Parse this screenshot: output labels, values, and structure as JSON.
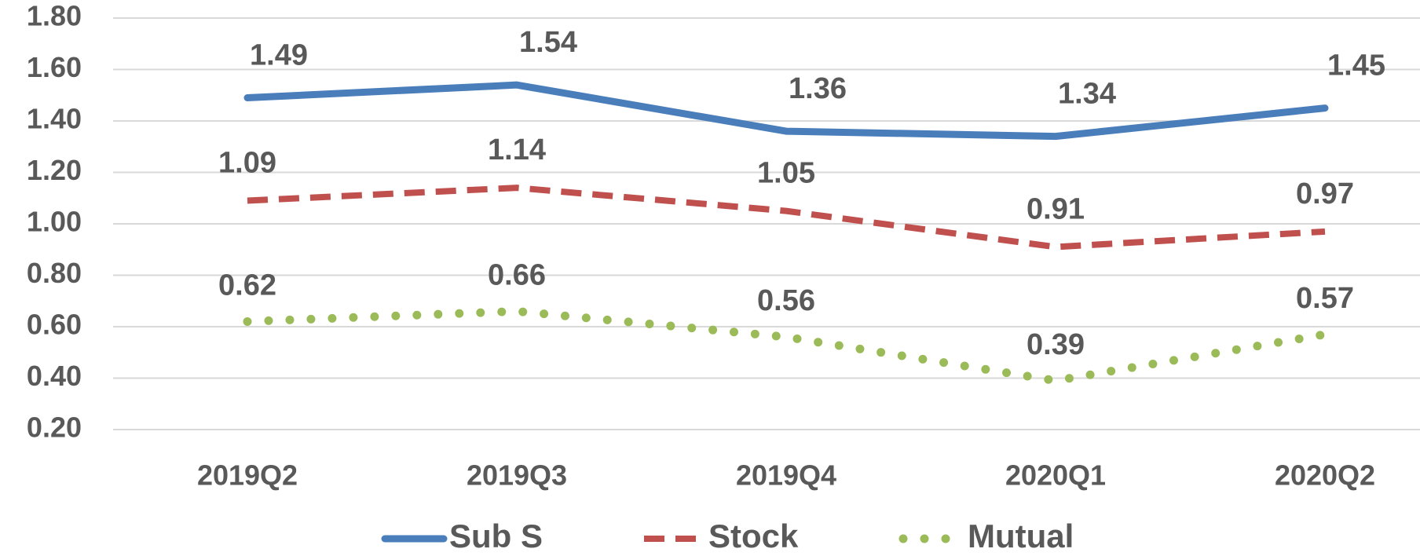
{
  "chart_data": {
    "type": "line",
    "categories": [
      "2019Q2",
      "2019Q3",
      "2019Q4",
      "2020Q1",
      "2020Q2"
    ],
    "series": [
      {
        "name": "Sub S",
        "color": "#4a7ebb",
        "line_style": "solid",
        "values": [
          1.49,
          1.54,
          1.36,
          1.34,
          1.45
        ]
      },
      {
        "name": "Stock",
        "color": "#c0504d",
        "line_style": "dashed",
        "values": [
          1.09,
          1.14,
          1.05,
          0.91,
          0.97
        ]
      },
      {
        "name": "Mutual",
        "color": "#9bbb59",
        "line_style": "dotted",
        "values": [
          0.62,
          0.66,
          0.56,
          0.39,
          0.57
        ]
      }
    ],
    "ylim": [
      0.2,
      1.8
    ],
    "yticks": [
      {
        "value": 0.2,
        "label": "0.20"
      },
      {
        "value": 0.4,
        "label": "0.40"
      },
      {
        "value": 0.6,
        "label": "0.60"
      },
      {
        "value": 0.8,
        "label": "0.80"
      },
      {
        "value": 1.0,
        "label": "1.00"
      },
      {
        "value": 1.2,
        "label": "1.20"
      },
      {
        "value": 1.4,
        "label": "1.40"
      },
      {
        "value": 1.6,
        "label": "1.60"
      },
      {
        "value": 1.8,
        "label": "1.80"
      }
    ],
    "grid": true,
    "legend": "bottom",
    "data_labels": true
  }
}
